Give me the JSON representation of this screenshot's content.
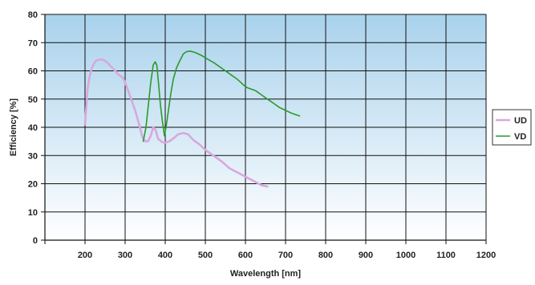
{
  "chart_data": {
    "type": "line",
    "title": "",
    "xlabel": "Wavelength [nm]",
    "ylabel": "Efficiency [%]",
    "xlim": [
      100,
      1200
    ],
    "ylim": [
      0,
      80
    ],
    "x_ticks": [
      200,
      300,
      400,
      500,
      600,
      700,
      800,
      900,
      1000,
      1100,
      1200
    ],
    "y_ticks": [
      0,
      10,
      20,
      30,
      40,
      50,
      60,
      70,
      80
    ],
    "grid": true,
    "legend_position": "right",
    "background_gradient": [
      "#a9d2ec",
      "#ffffff"
    ],
    "series": [
      {
        "name": "UD",
        "color": "#d8a8de",
        "points": [
          [
            200,
            41
          ],
          [
            203,
            47
          ],
          [
            206,
            53
          ],
          [
            210,
            57
          ],
          [
            215,
            60
          ],
          [
            220,
            62
          ],
          [
            227,
            63.5
          ],
          [
            235,
            64
          ],
          [
            245,
            64
          ],
          [
            255,
            63
          ],
          [
            265,
            61.5
          ],
          [
            275,
            60
          ],
          [
            285,
            58.5
          ],
          [
            295,
            57.5
          ],
          [
            305,
            54
          ],
          [
            315,
            50
          ],
          [
            325,
            46
          ],
          [
            335,
            41
          ],
          [
            343,
            36.5
          ],
          [
            350,
            35
          ],
          [
            357,
            35
          ],
          [
            364,
            37
          ],
          [
            370,
            40
          ],
          [
            376,
            39
          ],
          [
            382,
            36
          ],
          [
            390,
            35
          ],
          [
            398,
            34.5
          ],
          [
            410,
            35
          ],
          [
            420,
            36
          ],
          [
            432,
            37.5
          ],
          [
            445,
            38
          ],
          [
            457,
            37.5
          ],
          [
            470,
            35.5
          ],
          [
            485,
            34
          ],
          [
            500,
            32
          ],
          [
            520,
            30
          ],
          [
            540,
            28
          ],
          [
            560,
            25.5
          ],
          [
            580,
            24
          ],
          [
            600,
            22.5
          ],
          [
            620,
            21
          ],
          [
            640,
            19.5
          ],
          [
            655,
            19
          ]
        ]
      },
      {
        "name": "VD",
        "color": "#2a9a2a",
        "points": [
          [
            345,
            35
          ],
          [
            352,
            40
          ],
          [
            358,
            48
          ],
          [
            364,
            56
          ],
          [
            370,
            62
          ],
          [
            375,
            63.2
          ],
          [
            379,
            62
          ],
          [
            383,
            56
          ],
          [
            388,
            48
          ],
          [
            393,
            42
          ],
          [
            398,
            37
          ],
          [
            402,
            40
          ],
          [
            408,
            46
          ],
          [
            414,
            52
          ],
          [
            420,
            57
          ],
          [
            428,
            61
          ],
          [
            436,
            63.5
          ],
          [
            445,
            66
          ],
          [
            453,
            66.8
          ],
          [
            462,
            67
          ],
          [
            475,
            66.5
          ],
          [
            490,
            65.5
          ],
          [
            505,
            64.2
          ],
          [
            520,
            63
          ],
          [
            535,
            61.5
          ],
          [
            550,
            60
          ],
          [
            565,
            58.5
          ],
          [
            580,
            57
          ],
          [
            595,
            55
          ],
          [
            605,
            54
          ],
          [
            615,
            53.5
          ],
          [
            625,
            53
          ],
          [
            640,
            51.5
          ],
          [
            655,
            50
          ],
          [
            670,
            48.5
          ],
          [
            685,
            47
          ],
          [
            700,
            46
          ],
          [
            715,
            45
          ],
          [
            725,
            44.5
          ],
          [
            735,
            44
          ]
        ]
      }
    ]
  }
}
